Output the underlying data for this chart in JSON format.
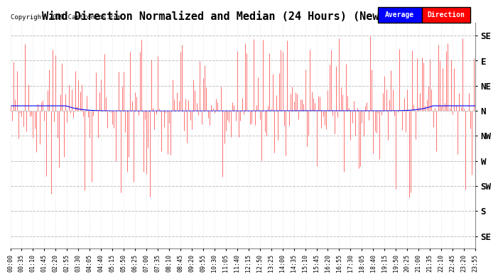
{
  "title": "Wind Direction Normalized and Median (24 Hours) (New) 20190419",
  "copyright": "Copyright 2019 Cartronics.com",
  "ytick_labels": [
    "SE",
    "E",
    "NE",
    "N",
    "NW",
    "W",
    "SW",
    "S",
    "SE"
  ],
  "ytick_values": [
    0,
    1,
    2,
    3,
    4,
    5,
    6,
    7,
    8
  ],
  "direction_color": "#ff0000",
  "average_color": "#0000ff",
  "bg_color": "#ffffff",
  "grid_color": "#b0b0b0",
  "title_fontsize": 11,
  "legend_avg_bg": "#0000ff",
  "legend_dir_bg": "#ff0000",
  "legend_text_color": "#ffffff",
  "n_points": 288,
  "base_value": 3.0,
  "tick_interval_minutes": 35
}
